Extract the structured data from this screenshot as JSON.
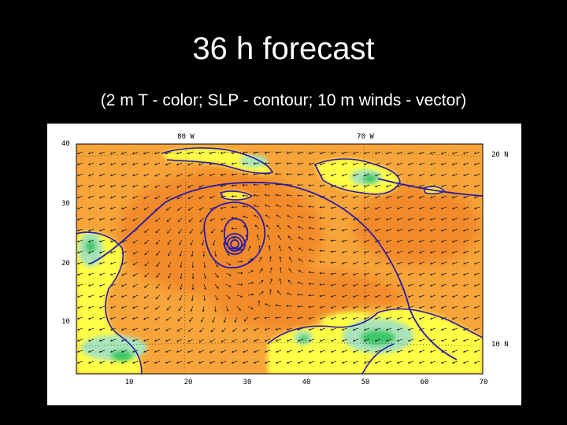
{
  "slide": {
    "title": "36 h forecast",
    "subtitle": "(2 m T - color; SLP - contour; 10 m winds - vector)"
  },
  "map": {
    "top_lon_labels": [
      "80 W",
      "70 W"
    ],
    "right_lat_labels": [
      "20 N",
      "10 N"
    ],
    "left_ticks": [
      "40",
      "30",
      "20",
      "10"
    ],
    "bottom_ticks": [
      "10",
      "20",
      "30",
      "40",
      "50",
      "60",
      "70"
    ],
    "colors": {
      "warm": "#f7a43a",
      "hot": "#f28a2a",
      "mild": "#ffd24a",
      "land": "#ffff44",
      "cool": "#a8e4b8",
      "cold": "#3cc86a",
      "contour": "#2a1aa8",
      "vectors": "#202020"
    }
  }
}
